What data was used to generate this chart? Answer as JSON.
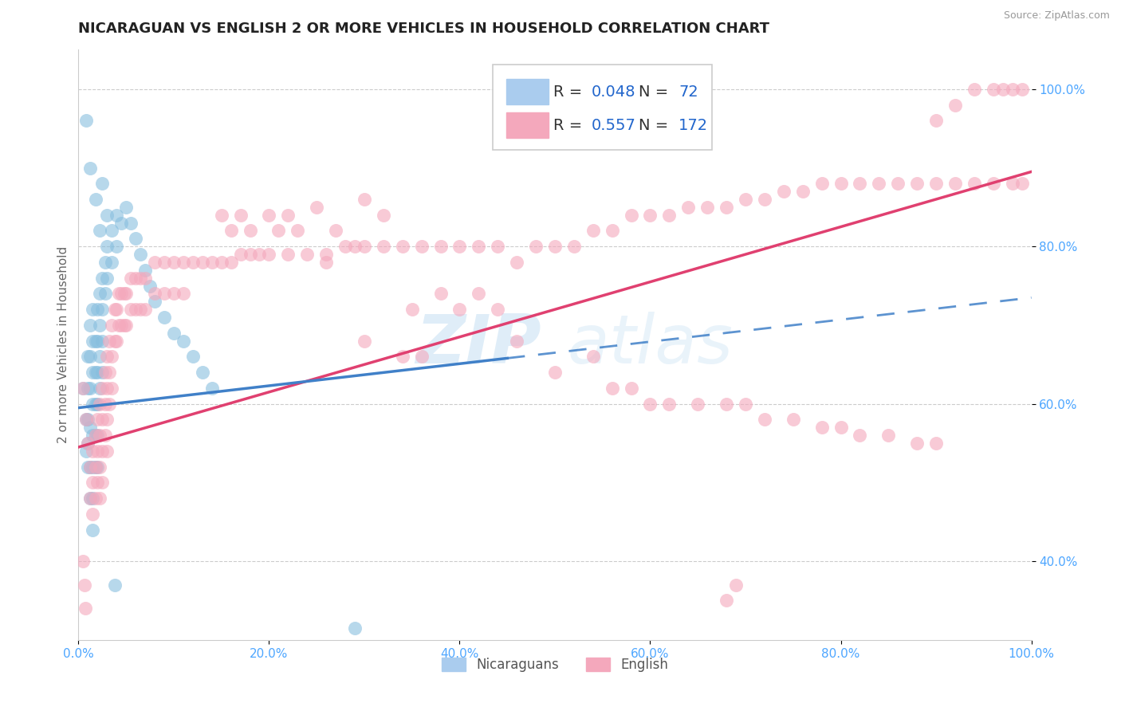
{
  "title": "NICARAGUAN VS ENGLISH 2 OR MORE VEHICLES IN HOUSEHOLD CORRELATION CHART",
  "source": "Source: ZipAtlas.com",
  "ylabel": "2 or more Vehicles in Household",
  "xmin": 0.0,
  "xmax": 1.0,
  "ymin": 0.3,
  "ymax": 1.05,
  "blue_R": 0.048,
  "blue_N": 72,
  "pink_R": 0.557,
  "pink_N": 172,
  "blue_color": "#87bede",
  "pink_color": "#f4a8bc",
  "blue_line_color": "#4080c8",
  "pink_line_color": "#e04070",
  "blue_line_y0": 0.595,
  "blue_line_y1": 0.735,
  "pink_line_y0": 0.545,
  "pink_line_y1": 0.895,
  "blue_scatter": [
    [
      0.005,
      0.62
    ],
    [
      0.008,
      0.58
    ],
    [
      0.008,
      0.54
    ],
    [
      0.01,
      0.66
    ],
    [
      0.01,
      0.62
    ],
    [
      0.01,
      0.58
    ],
    [
      0.01,
      0.55
    ],
    [
      0.01,
      0.52
    ],
    [
      0.012,
      0.7
    ],
    [
      0.012,
      0.66
    ],
    [
      0.012,
      0.62
    ],
    [
      0.012,
      0.57
    ],
    [
      0.012,
      0.52
    ],
    [
      0.012,
      0.48
    ],
    [
      0.015,
      0.72
    ],
    [
      0.015,
      0.68
    ],
    [
      0.015,
      0.64
    ],
    [
      0.015,
      0.6
    ],
    [
      0.015,
      0.56
    ],
    [
      0.015,
      0.52
    ],
    [
      0.015,
      0.48
    ],
    [
      0.015,
      0.44
    ],
    [
      0.018,
      0.68
    ],
    [
      0.018,
      0.64
    ],
    [
      0.018,
      0.6
    ],
    [
      0.018,
      0.56
    ],
    [
      0.018,
      0.52
    ],
    [
      0.02,
      0.72
    ],
    [
      0.02,
      0.68
    ],
    [
      0.02,
      0.64
    ],
    [
      0.02,
      0.6
    ],
    [
      0.02,
      0.56
    ],
    [
      0.02,
      0.52
    ],
    [
      0.022,
      0.74
    ],
    [
      0.022,
      0.7
    ],
    [
      0.022,
      0.66
    ],
    [
      0.022,
      0.62
    ],
    [
      0.025,
      0.76
    ],
    [
      0.025,
      0.72
    ],
    [
      0.025,
      0.68
    ],
    [
      0.025,
      0.64
    ],
    [
      0.028,
      0.78
    ],
    [
      0.028,
      0.74
    ],
    [
      0.03,
      0.8
    ],
    [
      0.03,
      0.76
    ],
    [
      0.035,
      0.82
    ],
    [
      0.035,
      0.78
    ],
    [
      0.04,
      0.84
    ],
    [
      0.04,
      0.8
    ],
    [
      0.045,
      0.83
    ],
    [
      0.05,
      0.85
    ],
    [
      0.055,
      0.83
    ],
    [
      0.06,
      0.81
    ],
    [
      0.065,
      0.79
    ],
    [
      0.07,
      0.77
    ],
    [
      0.075,
      0.75
    ],
    [
      0.08,
      0.73
    ],
    [
      0.09,
      0.71
    ],
    [
      0.1,
      0.69
    ],
    [
      0.11,
      0.68
    ],
    [
      0.12,
      0.66
    ],
    [
      0.13,
      0.64
    ],
    [
      0.14,
      0.62
    ],
    [
      0.008,
      0.96
    ],
    [
      0.012,
      0.9
    ],
    [
      0.018,
      0.86
    ],
    [
      0.022,
      0.82
    ],
    [
      0.025,
      0.88
    ],
    [
      0.03,
      0.84
    ],
    [
      0.038,
      0.37
    ],
    [
      0.29,
      0.315
    ]
  ],
  "pink_scatter": [
    [
      0.005,
      0.62
    ],
    [
      0.008,
      0.58
    ],
    [
      0.01,
      0.55
    ],
    [
      0.012,
      0.52
    ],
    [
      0.012,
      0.48
    ],
    [
      0.015,
      0.54
    ],
    [
      0.015,
      0.5
    ],
    [
      0.015,
      0.46
    ],
    [
      0.018,
      0.56
    ],
    [
      0.018,
      0.52
    ],
    [
      0.018,
      0.48
    ],
    [
      0.02,
      0.58
    ],
    [
      0.02,
      0.54
    ],
    [
      0.02,
      0.5
    ],
    [
      0.022,
      0.6
    ],
    [
      0.022,
      0.56
    ],
    [
      0.022,
      0.52
    ],
    [
      0.022,
      0.48
    ],
    [
      0.025,
      0.62
    ],
    [
      0.025,
      0.58
    ],
    [
      0.025,
      0.54
    ],
    [
      0.025,
      0.5
    ],
    [
      0.028,
      0.64
    ],
    [
      0.028,
      0.6
    ],
    [
      0.028,
      0.56
    ],
    [
      0.03,
      0.66
    ],
    [
      0.03,
      0.62
    ],
    [
      0.03,
      0.58
    ],
    [
      0.03,
      0.54
    ],
    [
      0.032,
      0.68
    ],
    [
      0.032,
      0.64
    ],
    [
      0.032,
      0.6
    ],
    [
      0.035,
      0.7
    ],
    [
      0.035,
      0.66
    ],
    [
      0.035,
      0.62
    ],
    [
      0.038,
      0.72
    ],
    [
      0.038,
      0.68
    ],
    [
      0.04,
      0.72
    ],
    [
      0.04,
      0.68
    ],
    [
      0.042,
      0.74
    ],
    [
      0.042,
      0.7
    ],
    [
      0.045,
      0.74
    ],
    [
      0.045,
      0.7
    ],
    [
      0.048,
      0.74
    ],
    [
      0.048,
      0.7
    ],
    [
      0.05,
      0.74
    ],
    [
      0.05,
      0.7
    ],
    [
      0.055,
      0.76
    ],
    [
      0.055,
      0.72
    ],
    [
      0.06,
      0.76
    ],
    [
      0.06,
      0.72
    ],
    [
      0.065,
      0.76
    ],
    [
      0.065,
      0.72
    ],
    [
      0.07,
      0.76
    ],
    [
      0.07,
      0.72
    ],
    [
      0.08,
      0.78
    ],
    [
      0.08,
      0.74
    ],
    [
      0.09,
      0.78
    ],
    [
      0.09,
      0.74
    ],
    [
      0.1,
      0.78
    ],
    [
      0.1,
      0.74
    ],
    [
      0.11,
      0.78
    ],
    [
      0.11,
      0.74
    ],
    [
      0.12,
      0.78
    ],
    [
      0.13,
      0.78
    ],
    [
      0.14,
      0.78
    ],
    [
      0.15,
      0.78
    ],
    [
      0.16,
      0.78
    ],
    [
      0.17,
      0.79
    ],
    [
      0.18,
      0.79
    ],
    [
      0.19,
      0.79
    ],
    [
      0.2,
      0.79
    ],
    [
      0.22,
      0.79
    ],
    [
      0.24,
      0.79
    ],
    [
      0.26,
      0.79
    ],
    [
      0.28,
      0.8
    ],
    [
      0.3,
      0.8
    ],
    [
      0.32,
      0.8
    ],
    [
      0.34,
      0.8
    ],
    [
      0.36,
      0.8
    ],
    [
      0.38,
      0.8
    ],
    [
      0.4,
      0.8
    ],
    [
      0.42,
      0.8
    ],
    [
      0.44,
      0.8
    ],
    [
      0.35,
      0.72
    ],
    [
      0.38,
      0.74
    ],
    [
      0.4,
      0.72
    ],
    [
      0.42,
      0.74
    ],
    [
      0.44,
      0.72
    ],
    [
      0.46,
      0.78
    ],
    [
      0.48,
      0.8
    ],
    [
      0.5,
      0.8
    ],
    [
      0.52,
      0.8
    ],
    [
      0.54,
      0.82
    ],
    [
      0.56,
      0.82
    ],
    [
      0.58,
      0.84
    ],
    [
      0.6,
      0.84
    ],
    [
      0.62,
      0.84
    ],
    [
      0.64,
      0.85
    ],
    [
      0.66,
      0.85
    ],
    [
      0.68,
      0.85
    ],
    [
      0.7,
      0.86
    ],
    [
      0.72,
      0.86
    ],
    [
      0.74,
      0.87
    ],
    [
      0.76,
      0.87
    ],
    [
      0.78,
      0.88
    ],
    [
      0.8,
      0.88
    ],
    [
      0.82,
      0.88
    ],
    [
      0.84,
      0.88
    ],
    [
      0.86,
      0.88
    ],
    [
      0.88,
      0.88
    ],
    [
      0.9,
      0.88
    ],
    [
      0.92,
      0.88
    ],
    [
      0.94,
      0.88
    ],
    [
      0.96,
      0.88
    ],
    [
      0.98,
      0.88
    ],
    [
      0.99,
      0.88
    ],
    [
      0.96,
      1.0
    ],
    [
      0.97,
      1.0
    ],
    [
      0.98,
      1.0
    ],
    [
      0.99,
      1.0
    ],
    [
      0.94,
      1.0
    ],
    [
      0.92,
      0.98
    ],
    [
      0.9,
      0.96
    ],
    [
      0.46,
      0.68
    ],
    [
      0.5,
      0.64
    ],
    [
      0.54,
      0.66
    ],
    [
      0.56,
      0.62
    ],
    [
      0.58,
      0.62
    ],
    [
      0.6,
      0.6
    ],
    [
      0.62,
      0.6
    ],
    [
      0.65,
      0.6
    ],
    [
      0.68,
      0.6
    ],
    [
      0.7,
      0.6
    ],
    [
      0.72,
      0.58
    ],
    [
      0.75,
      0.58
    ],
    [
      0.78,
      0.57
    ],
    [
      0.8,
      0.57
    ],
    [
      0.82,
      0.56
    ],
    [
      0.85,
      0.56
    ],
    [
      0.88,
      0.55
    ],
    [
      0.9,
      0.55
    ],
    [
      0.3,
      0.68
    ],
    [
      0.34,
      0.66
    ],
    [
      0.36,
      0.66
    ],
    [
      0.25,
      0.85
    ],
    [
      0.27,
      0.82
    ],
    [
      0.3,
      0.86
    ],
    [
      0.32,
      0.84
    ],
    [
      0.26,
      0.78
    ],
    [
      0.29,
      0.8
    ],
    [
      0.15,
      0.84
    ],
    [
      0.16,
      0.82
    ],
    [
      0.17,
      0.84
    ],
    [
      0.18,
      0.82
    ],
    [
      0.2,
      0.84
    ],
    [
      0.21,
      0.82
    ],
    [
      0.22,
      0.84
    ],
    [
      0.23,
      0.82
    ],
    [
      0.68,
      0.35
    ],
    [
      0.69,
      0.37
    ],
    [
      0.005,
      0.4
    ],
    [
      0.006,
      0.37
    ],
    [
      0.007,
      0.34
    ]
  ],
  "xticks": [
    0.0,
    0.2,
    0.4,
    0.6,
    0.8,
    1.0
  ],
  "xtick_labels": [
    "0.0%",
    "20.0%",
    "40.0%",
    "60.0%",
    "80.0%",
    "100.0%"
  ],
  "yticks": [
    0.4,
    0.6,
    0.8,
    1.0
  ],
  "ytick_labels": [
    "40.0%",
    "60.0%",
    "80.0%",
    "100.0%"
  ],
  "watermark_line1": "ZIP",
  "watermark_line2": "atlas",
  "grid_color": "#cccccc",
  "background_color": "#ffffff",
  "title_fontsize": 13,
  "axis_label_fontsize": 11,
  "tick_fontsize": 11,
  "legend_fs": 14
}
